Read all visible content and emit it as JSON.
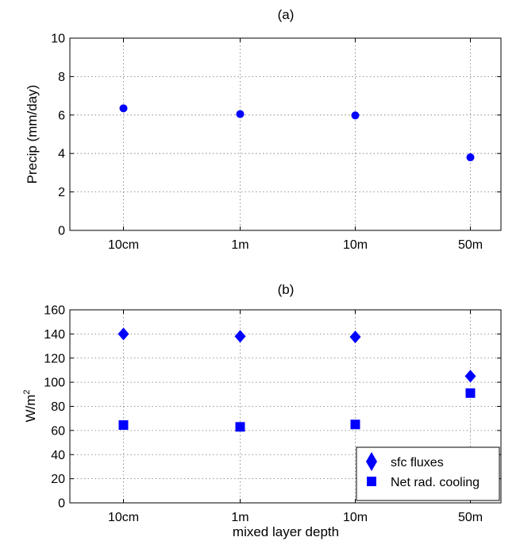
{
  "chart_data": [
    {
      "type": "scatter",
      "title": "(a)",
      "xlabel": "",
      "ylabel": "Precip (mm/day)",
      "categories": [
        "10cm",
        "1m",
        "10m",
        "50m"
      ],
      "ylim": [
        0,
        10
      ],
      "yticks": [
        0,
        2,
        4,
        6,
        8,
        10
      ],
      "grid": true,
      "series": [
        {
          "name": "",
          "marker": "circle",
          "color": "#0000ff",
          "values": [
            6.35,
            6.05,
            5.98,
            3.8
          ]
        }
      ]
    },
    {
      "type": "scatter",
      "title": "(b)",
      "xlabel": "mixed layer depth",
      "ylabel": "W/m",
      "ylabel_superscript": "2",
      "categories": [
        "10cm",
        "1m",
        "10m",
        "50m"
      ],
      "ylim": [
        0,
        160
      ],
      "yticks": [
        0,
        20,
        40,
        60,
        80,
        100,
        120,
        140,
        160
      ],
      "grid": true,
      "legend": "bottom-right",
      "series": [
        {
          "name": "sfc fluxes",
          "marker": "diamond",
          "color": "#0000ff",
          "values": [
            140,
            138,
            137.5,
            105
          ]
        },
        {
          "name": "Net rad. cooling",
          "marker": "square",
          "color": "#0000ff",
          "values": [
            64.5,
            63,
            65,
            91
          ]
        }
      ]
    }
  ]
}
